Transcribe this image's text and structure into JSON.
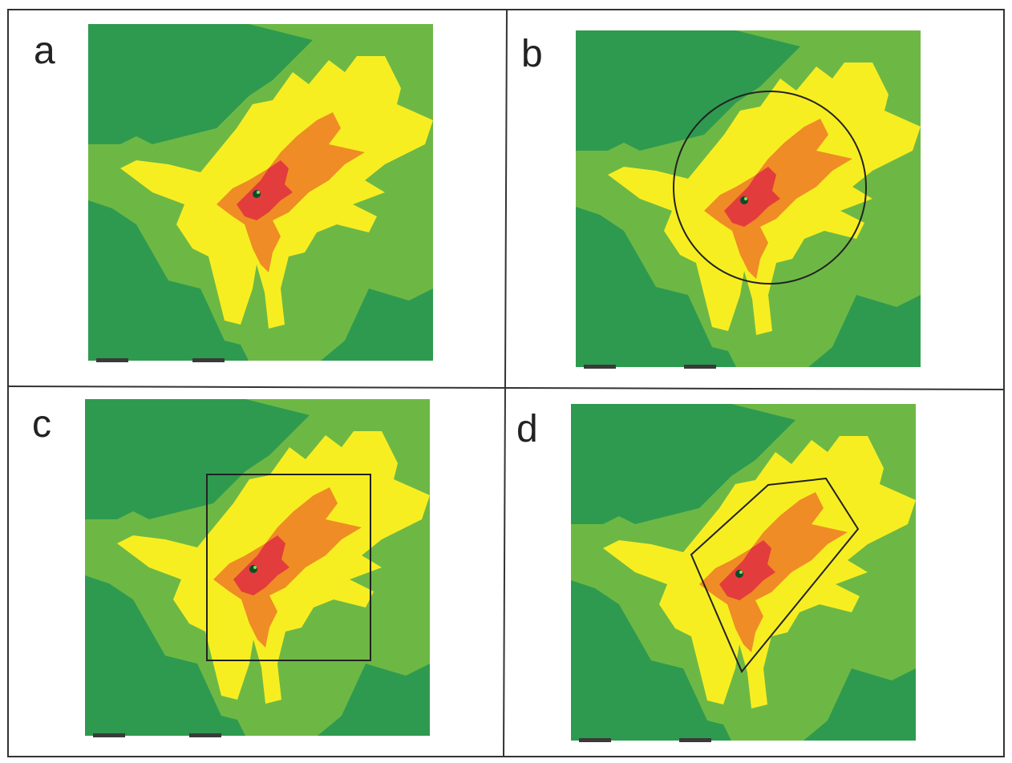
{
  "colors": {
    "dark_green": "#2e9a4f",
    "light_green": "#6db845",
    "yellow": "#f7ee22",
    "orange": "#ef8c25",
    "red": "#e33c3c",
    "border": "#333333",
    "background": "#ffffff"
  },
  "panels": [
    {
      "label": "a",
      "boundary": "none"
    },
    {
      "label": "b",
      "boundary": "circle"
    },
    {
      "label": "c",
      "boundary": "rectangle"
    },
    {
      "label": "d",
      "boundary": "polygon"
    }
  ]
}
